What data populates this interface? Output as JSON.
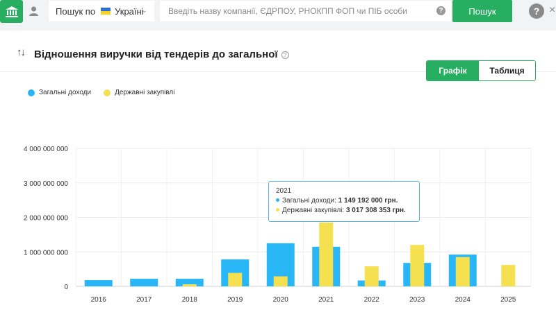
{
  "colors": {
    "accent": "#27ae60",
    "income": "#29b6f6",
    "procurement": "#f5e04f"
  },
  "topbar": {
    "home_icon": "bank-icon",
    "user_icon": "user-icon",
    "country_prefix": "Пошук по",
    "country_name": "Україні",
    "search_placeholder": "Введіть назву компанії, ЄДРПОУ, РНОКПП ФОП чи ПІБ особи",
    "search_button": "Пошук"
  },
  "card": {
    "title": "Відношення виручки від тендерів до загальної",
    "tab_chart": "Графік",
    "tab_table": "Таблиця"
  },
  "chart_data": {
    "type": "bar",
    "categories": [
      "2016",
      "2017",
      "2018",
      "2019",
      "2020",
      "2021",
      "2022",
      "2023",
      "2024",
      "2025"
    ],
    "series": [
      {
        "name": "Загальні доходи",
        "color": "#29b6f6",
        "values": [
          180000000,
          220000000,
          220000000,
          780000000,
          1250000000,
          1149192000,
          170000000,
          680000000,
          920000000,
          0
        ]
      },
      {
        "name": "Державні закупівлі",
        "color": "#f5e04f",
        "values": [
          0,
          0,
          60000000,
          390000000,
          290000000,
          3017308353,
          580000000,
          1200000000,
          850000000,
          620000000
        ]
      }
    ],
    "y_ticks": [
      "0",
      "1 000 000 000",
      "2 000 000 000",
      "3 000 000 000",
      "4 000 000 000"
    ],
    "ylim": [
      0,
      4000000000
    ],
    "grid": true,
    "legend": "top-left"
  },
  "tooltip": {
    "year": "2021",
    "income_label": "Загальні доходи:",
    "income_value": "1 149 192 000 грн.",
    "procurement_label": "Державні закупівлі:",
    "procurement_value": "3 017 308 353 грн."
  }
}
